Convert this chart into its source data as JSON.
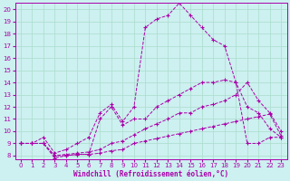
{
  "xlabel": "Windchill (Refroidissement éolien,°C)",
  "background_color": "#cdf0f0",
  "grid_color": "#aaddcc",
  "line_color": "#aa00aa",
  "xlim": [
    -0.5,
    23.5
  ],
  "ylim": [
    7.7,
    20.5
  ],
  "xticks": [
    0,
    1,
    2,
    3,
    4,
    5,
    6,
    7,
    8,
    9,
    10,
    11,
    12,
    13,
    14,
    15,
    16,
    17,
    18,
    19,
    20,
    21,
    22,
    23
  ],
  "yticks": [
    8,
    9,
    10,
    11,
    12,
    13,
    14,
    15,
    16,
    17,
    18,
    19,
    20
  ],
  "line_big_x": [
    0,
    1,
    2,
    3,
    4,
    5,
    6,
    7,
    8,
    9,
    10,
    11,
    12,
    13,
    14,
    15,
    16,
    17,
    18,
    19,
    20,
    21,
    22,
    23
  ],
  "line_big_y": [
    9,
    9,
    9.5,
    8.2,
    8.5,
    9,
    9.5,
    11.5,
    12.2,
    10.8,
    12,
    18.5,
    19.2,
    19.5,
    20.5,
    19.5,
    18.5,
    17.5,
    17,
    14,
    9,
    9,
    9.5,
    9.5
  ],
  "line_med_x": [
    0,
    1,
    2,
    3,
    4,
    5,
    6,
    7,
    8,
    9,
    10,
    11,
    12,
    13,
    14,
    15,
    16,
    17,
    18,
    19,
    20,
    21,
    22,
    23
  ],
  "line_med_y": [
    9,
    9,
    9,
    7.8,
    8,
    8.1,
    8.1,
    11,
    12,
    10.5,
    11,
    11,
    12,
    12.5,
    13,
    13.5,
    14,
    14,
    14.2,
    14,
    12,
    11.5,
    10.2,
    9.5
  ],
  "line_lo1_x": [
    0,
    1,
    2,
    3,
    4,
    5,
    6,
    7,
    8,
    9,
    10,
    11,
    12,
    13,
    14,
    15,
    16,
    17,
    18,
    19,
    20,
    21,
    22,
    23
  ],
  "line_lo1_y": [
    9,
    9,
    9,
    8,
    8.1,
    8.2,
    8.3,
    8.5,
    9,
    9.2,
    9.7,
    10.2,
    10.6,
    11,
    11.5,
    11.5,
    12,
    12.2,
    12.5,
    13,
    14,
    12.5,
    11.5,
    10
  ],
  "line_lo2_x": [
    0,
    1,
    2,
    3,
    4,
    5,
    6,
    7,
    8,
    9,
    10,
    11,
    12,
    13,
    14,
    15,
    16,
    17,
    18,
    19,
    20,
    21,
    22,
    23
  ],
  "line_lo2_y": [
    9,
    9,
    9,
    8,
    8,
    8.1,
    8.1,
    8.2,
    8.4,
    8.5,
    9,
    9.2,
    9.4,
    9.6,
    9.8,
    10,
    10.2,
    10.4,
    10.6,
    10.8,
    11,
    11.2,
    11.4,
    9.6
  ]
}
